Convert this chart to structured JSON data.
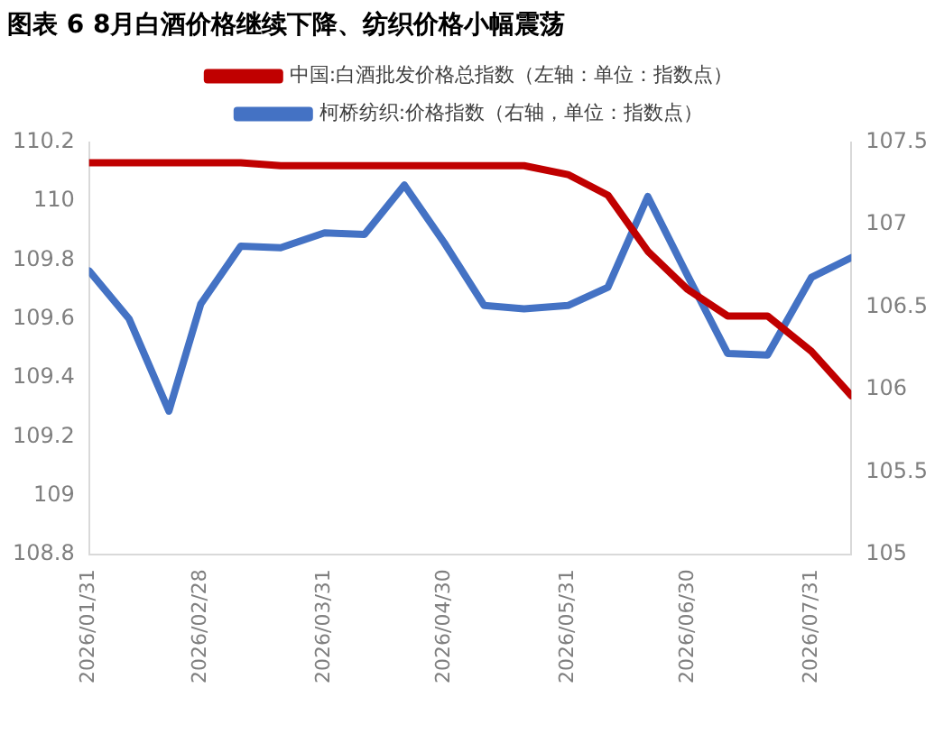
{
  "chart_data": {
    "type": "line",
    "title": "图表 6 8月白酒价格继续下降、纺织价格小幅震荡",
    "x": [
      "2026-01-31",
      "2026-02-10",
      "2026-02-20",
      "2026-02-28",
      "2026-03-10",
      "2026-03-20",
      "2026-03-31",
      "2026-04-10",
      "2026-04-20",
      "2026-04-30",
      "2026-05-10",
      "2026-05-20",
      "2026-05-31",
      "2026-06-10",
      "2026-06-20",
      "2026-06-30",
      "2026-07-10",
      "2026-07-20",
      "2026-07-31",
      "2026-08-10"
    ],
    "series": [
      {
        "name": "中国:白酒批发价格总指数（左轴：单位：指数点）",
        "color": "#c00000",
        "values": [
          110.13,
          110.13,
          110.13,
          110.13,
          110.13,
          110.12,
          110.12,
          110.12,
          110.12,
          110.12,
          110.12,
          110.12,
          110.09,
          110.02,
          109.83,
          109.7,
          109.61,
          109.61,
          109.49,
          109.34
        ]
      },
      {
        "name": "柯桥纺织:价格指数（右轴，单位：指数点）",
        "color": "#4472c4",
        "axis": "y2",
        "values": [
          106.72,
          106.43,
          105.87,
          106.52,
          106.87,
          106.86,
          106.95,
          106.94,
          107.24,
          106.89,
          106.51,
          106.49,
          106.51,
          106.62,
          107.17,
          106.69,
          106.22,
          106.21,
          106.68,
          106.8
        ]
      }
    ],
    "xlim": [
      "2026-01-31",
      "2026-08-10"
    ],
    "xticks": [
      {
        "value": "2026-01-31",
        "label": "2026/01/31"
      },
      {
        "value": "2026-02-28",
        "label": "2026/02/28"
      },
      {
        "value": "2026-03-31",
        "label": "2026/03/31"
      },
      {
        "value": "2026-04-30",
        "label": "2026/04/30"
      },
      {
        "value": "2026-05-31",
        "label": "2026/05/31"
      },
      {
        "value": "2026-06-30",
        "label": "2026/06/30"
      },
      {
        "value": "2026-07-31",
        "label": "2026/07/31"
      }
    ],
    "ylim": [
      108.8,
      110.2
    ],
    "yticks": [
      108.8,
      109,
      109.2,
      109.4,
      109.6,
      109.8,
      110,
      110.2
    ],
    "y2lim": [
      105,
      107.5
    ],
    "y2ticks": [
      105,
      105.5,
      106,
      106.5,
      107,
      107.5
    ],
    "grid": false,
    "legend": "top",
    "marker": "none",
    "line_style": "solid"
  }
}
